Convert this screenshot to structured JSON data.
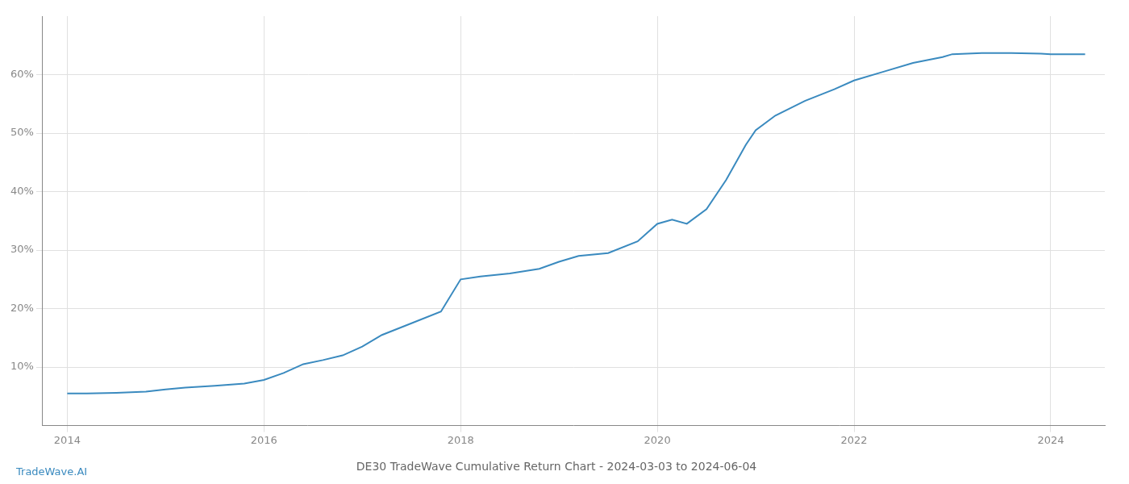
{
  "chart_data": {
    "type": "line",
    "title": "DE30 TradeWave Cumulative Return Chart - 2024-03-03 to 2024-06-04",
    "annotations": [
      "TradeWave.AI"
    ],
    "color": "#3a8abf",
    "grid": true,
    "x": [
      2014.0,
      2014.2,
      2014.5,
      2014.8,
      2015.0,
      2015.2,
      2015.5,
      2015.8,
      2016.0,
      2016.2,
      2016.4,
      2016.6,
      2016.8,
      2017.0,
      2017.2,
      2017.5,
      2017.8,
      2018.0,
      2018.2,
      2018.5,
      2018.8,
      2019.0,
      2019.2,
      2019.5,
      2019.8,
      2020.0,
      2020.15,
      2020.3,
      2020.5,
      2020.7,
      2020.9,
      2021.0,
      2021.2,
      2021.5,
      2021.8,
      2022.0,
      2022.3,
      2022.6,
      2022.9,
      2023.0,
      2023.3,
      2023.6,
      2023.9,
      2024.0,
      2024.35
    ],
    "values": [
      5.5,
      5.5,
      5.6,
      5.8,
      6.2,
      6.5,
      6.8,
      7.2,
      7.8,
      9.0,
      10.5,
      11.2,
      12.0,
      13.5,
      15.5,
      17.5,
      19.5,
      25.0,
      25.5,
      26.0,
      26.8,
      28.0,
      29.0,
      29.5,
      31.5,
      34.5,
      35.2,
      34.5,
      37.0,
      42.0,
      48.0,
      50.5,
      53.0,
      55.5,
      57.5,
      59.0,
      60.5,
      62.0,
      63.0,
      63.5,
      63.7,
      63.7,
      63.6,
      63.5,
      63.5
    ],
    "xlim": [
      2013.75,
      2024.55
    ],
    "xticks": [
      2014,
      2016,
      2018,
      2020,
      2022,
      2024
    ],
    "ylim": [
      0,
      70
    ],
    "yticks": [
      {
        "value": 10,
        "label": "10%"
      },
      {
        "value": 20,
        "label": "20%"
      },
      {
        "value": 30,
        "label": "30%"
      },
      {
        "value": 40,
        "label": "40%"
      },
      {
        "value": 50,
        "label": "50%"
      },
      {
        "value": 60,
        "label": "60%"
      }
    ]
  }
}
